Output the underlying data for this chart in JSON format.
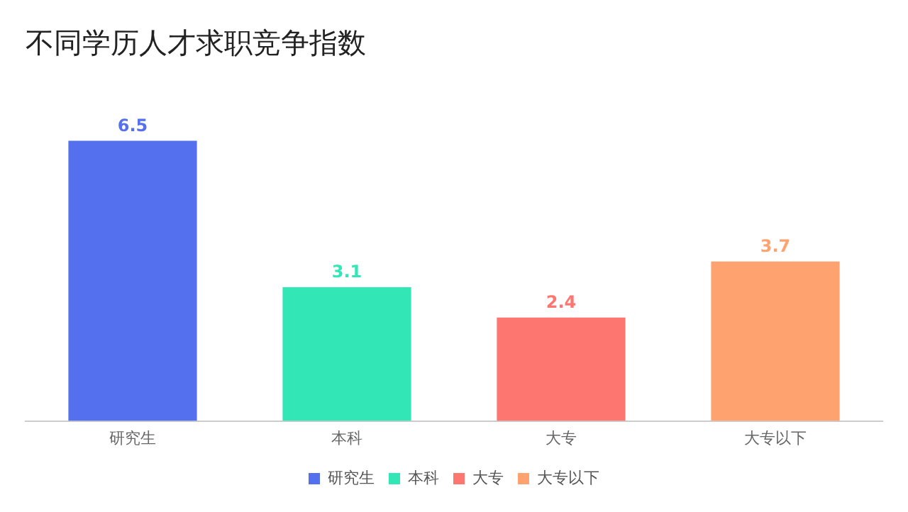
{
  "chart_data": {
    "type": "bar",
    "title": "不同学历人才求职竞争指数",
    "categories": [
      "研究生",
      "本科",
      "大专",
      "大专以下"
    ],
    "series": [
      {
        "name": "研究生",
        "color": "#5470ef",
        "values": [
          6.5,
          null,
          null,
          null
        ]
      },
      {
        "name": "本科",
        "color": "#33e6b6",
        "values": [
          null,
          3.1,
          null,
          null
        ]
      },
      {
        "name": "大专",
        "color": "#fe7670",
        "values": [
          null,
          null,
          2.4,
          null
        ]
      },
      {
        "name": "大专以下",
        "color": "#fea36f",
        "values": [
          null,
          null,
          null,
          3.7
        ]
      }
    ],
    "data_labels": true,
    "legend": "bottom",
    "grid": false
  }
}
